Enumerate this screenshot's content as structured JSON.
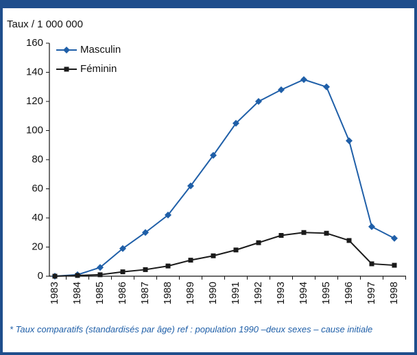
{
  "chart_data": {
    "type": "line",
    "y_label": "Taux / 1 000 000",
    "categories": [
      "1983",
      "1984",
      "1985",
      "1986",
      "1987",
      "1988",
      "1989",
      "1990",
      "1991",
      "1992",
      "1993",
      "1994",
      "1995",
      "1996",
      "1997",
      "1998"
    ],
    "series": [
      {
        "name": "Masculin",
        "color": "#1f5fa8",
        "marker": "diamond",
        "values": [
          0,
          1,
          6,
          19,
          30,
          42,
          62,
          83,
          105,
          120,
          128,
          135,
          130,
          93,
          34,
          26
        ]
      },
      {
        "name": "Féminin",
        "color": "#1a1a1a",
        "marker": "square",
        "values": [
          0,
          0.5,
          1,
          3,
          4.5,
          7,
          11,
          14,
          18,
          23,
          28,
          30,
          29.5,
          24.5,
          8.5,
          7.5
        ]
      }
    ],
    "ylim": [
      0,
      160
    ],
    "yticks": [
      0,
      20,
      40,
      60,
      80,
      100,
      120,
      140,
      160
    ],
    "grid": false,
    "legend": "top-left",
    "footnote": "* Taux comparatifs (standardisés par âge) ref : population 1990 –deux sexes – cause initiale"
  }
}
